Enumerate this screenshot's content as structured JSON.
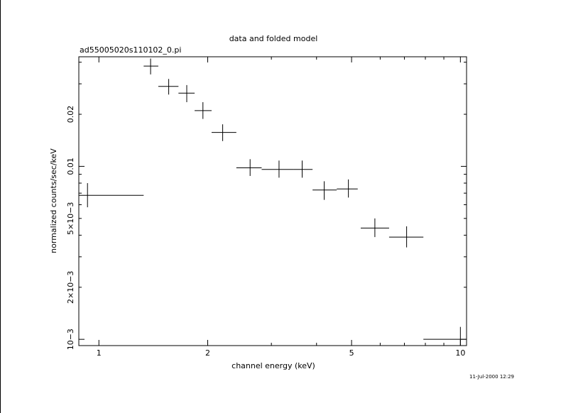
{
  "chart_data": {
    "type": "scatter",
    "title": "data and folded model",
    "subtitle": "ad55005020s110102_0.pi",
    "xlabel": "channel energy (keV)",
    "ylabel": "normalized counts/sec/keV",
    "x_scale": "log",
    "y_scale": "log",
    "xlim": [
      0.88,
      10.4
    ],
    "ylim": [
      0.00092,
      0.043
    ],
    "x_ticks": [
      {
        "value": 1,
        "label": "1"
      },
      {
        "value": 2,
        "label": "2"
      },
      {
        "value": 5,
        "label": "5"
      },
      {
        "value": 10,
        "label": "10"
      }
    ],
    "y_ticks": [
      {
        "value": 0.001,
        "label": "10−3"
      },
      {
        "value": 0.002,
        "label": "2×10−3"
      },
      {
        "value": 0.005,
        "label": "5×10−3"
      },
      {
        "value": 0.01,
        "label": "0.01"
      },
      {
        "value": 0.02,
        "label": "0.02"
      }
    ],
    "grid": false,
    "points": [
      {
        "x": 0.93,
        "xlo": 0.88,
        "xhi": 1.33,
        "y": 0.0068,
        "ylo": 0.0058,
        "yhi": 0.008
      },
      {
        "x": 1.39,
        "xlo": 1.33,
        "xhi": 1.46,
        "y": 0.038,
        "ylo": 0.034,
        "yhi": 0.042
      },
      {
        "x": 1.56,
        "xlo": 1.46,
        "xhi": 1.66,
        "y": 0.029,
        "ylo": 0.026,
        "yhi": 0.032
      },
      {
        "x": 1.75,
        "xlo": 1.66,
        "xhi": 1.84,
        "y": 0.0265,
        "ylo": 0.0235,
        "yhi": 0.0295
      },
      {
        "x": 1.94,
        "xlo": 1.84,
        "xhi": 2.05,
        "y": 0.021,
        "ylo": 0.0188,
        "yhi": 0.0235
      },
      {
        "x": 2.2,
        "xlo": 2.05,
        "xhi": 2.4,
        "y": 0.0157,
        "ylo": 0.014,
        "yhi": 0.0175
      },
      {
        "x": 2.62,
        "xlo": 2.4,
        "xhi": 2.82,
        "y": 0.0098,
        "ylo": 0.0088,
        "yhi": 0.011
      },
      {
        "x": 3.15,
        "xlo": 2.82,
        "xhi": 3.45,
        "y": 0.0096,
        "ylo": 0.0086,
        "yhi": 0.0108
      },
      {
        "x": 3.65,
        "xlo": 3.45,
        "xhi": 3.9,
        "y": 0.0096,
        "ylo": 0.0086,
        "yhi": 0.0108
      },
      {
        "x": 4.2,
        "xlo": 3.9,
        "xhi": 4.55,
        "y": 0.0073,
        "ylo": 0.0064,
        "yhi": 0.0082
      },
      {
        "x": 4.9,
        "xlo": 4.55,
        "xhi": 5.2,
        "y": 0.0074,
        "ylo": 0.0066,
        "yhi": 0.0084
      },
      {
        "x": 5.8,
        "xlo": 5.3,
        "xhi": 6.35,
        "y": 0.0044,
        "ylo": 0.0039,
        "yhi": 0.005
      },
      {
        "x": 7.1,
        "xlo": 6.35,
        "xhi": 7.9,
        "y": 0.0039,
        "ylo": 0.0034,
        "yhi": 0.0045
      },
      {
        "x": 10.0,
        "xlo": 7.9,
        "xhi": 10.4,
        "y": 0.001,
        "ylo": 0.00092,
        "yhi": 0.00118
      }
    ]
  },
  "timestamp": "11-Jul-2000 12:29"
}
